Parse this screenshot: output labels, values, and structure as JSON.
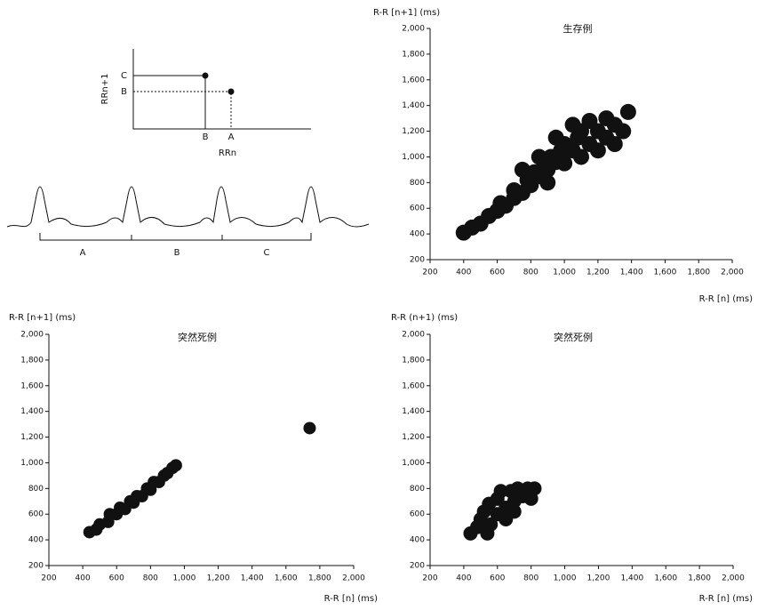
{
  "diagram": {
    "y_label": "RRn+1",
    "x_label": "RRn",
    "y_points": [
      "C",
      "B"
    ],
    "x_points": [
      "B",
      "A"
    ],
    "intervals": [
      "A",
      "B",
      "C"
    ]
  },
  "chart_data": [
    {
      "type": "scatter",
      "title": "生存例",
      "y_label": "R-R [n+1] (ms)",
      "x_label": "R-R [n] (ms)",
      "color": "#111111",
      "xlim": [
        200,
        2000
      ],
      "ylim": [
        200,
        2000
      ],
      "xticks": [
        200,
        400,
        600,
        800,
        {
          "value": 1000,
          "label": "1,000"
        },
        {
          "value": 1200,
          "label": "1,200"
        },
        {
          "value": 1400,
          "label": "1,400"
        },
        {
          "value": 1600,
          "label": "1,600"
        },
        {
          "value": 1800,
          "label": "1,800"
        },
        {
          "value": 2000,
          "label": "2,000"
        }
      ],
      "yticks": [
        200,
        400,
        600,
        800,
        {
          "value": 1000,
          "label": "1,000"
        },
        {
          "value": 1200,
          "label": "1,200"
        },
        {
          "value": 1400,
          "label": "1,400"
        },
        {
          "value": 1600,
          "label": "1,600"
        },
        {
          "value": 1800,
          "label": "1,800"
        },
        {
          "value": 2000,
          "label": "2,000"
        }
      ],
      "x": [
        400,
        450,
        500,
        550,
        600,
        620,
        650,
        700,
        700,
        750,
        780,
        800,
        820,
        850,
        880,
        900,
        920,
        950,
        980,
        1000,
        1000,
        1050,
        1080,
        1100,
        1100,
        1150,
        1200,
        1200,
        1250,
        1300,
        1300,
        1350,
        1380,
        850,
        950,
        1050,
        750,
        900,
        1150,
        1250
      ],
      "values": [
        410,
        450,
        480,
        540,
        580,
        640,
        620,
        680,
        740,
        720,
        820,
        780,
        880,
        850,
        940,
        900,
        1000,
        960,
        1050,
        950,
        1100,
        1050,
        1150,
        1000,
        1200,
        1100,
        1200,
        1050,
        1150,
        1250,
        1100,
        1200,
        1350,
        1000,
        1150,
        1250,
        900,
        800,
        1280,
        1300
      ]
    },
    {
      "type": "scatter",
      "title": "突然死例",
      "y_label": "R-R [n+1] (ms)",
      "x_label": "R-R [n] (ms)",
      "color": "#111111",
      "xlim": [
        200,
        2000
      ],
      "ylim": [
        200,
        2000
      ],
      "xticks": [
        200,
        400,
        600,
        800,
        {
          "value": 1000,
          "label": "1,000"
        },
        {
          "value": 1200,
          "label": "1,200"
        },
        {
          "value": 1400,
          "label": "1,400"
        },
        {
          "value": 1600,
          "label": "1,600"
        },
        {
          "value": 1800,
          "label": "1,800"
        },
        {
          "value": 2000,
          "label": "2,000"
        }
      ],
      "yticks": [
        200,
        400,
        600,
        800,
        {
          "value": 1000,
          "label": "1,000"
        },
        {
          "value": 1200,
          "label": "1,200"
        },
        {
          "value": 1400,
          "label": "1,400"
        },
        {
          "value": 1600,
          "label": "1,600"
        },
        {
          "value": 1800,
          "label": "1,800"
        },
        {
          "value": 2000,
          "label": "2,000"
        }
      ],
      "x": [
        440,
        480,
        500,
        550,
        560,
        600,
        620,
        650,
        680,
        700,
        720,
        750,
        780,
        800,
        820,
        850,
        880,
        900,
        930,
        950,
        1740
      ],
      "values": [
        460,
        480,
        520,
        540,
        600,
        600,
        650,
        640,
        700,
        690,
        740,
        740,
        800,
        790,
        850,
        850,
        900,
        920,
        960,
        980,
        1270
      ]
    },
    {
      "type": "scatter",
      "title": "突然死例",
      "y_label": "R-R (n+1) (ms)",
      "x_label": "R-R [n] (ms)",
      "color": "#111111",
      "xlim": [
        200,
        2000
      ],
      "ylim": [
        200,
        2000
      ],
      "xticks": [
        200,
        400,
        600,
        800,
        {
          "value": 1000,
          "label": "1,000"
        },
        {
          "value": 1200,
          "label": "1,200"
        },
        {
          "value": 1400,
          "label": "1,400"
        },
        {
          "value": 1600,
          "label": "1,600"
        },
        {
          "value": 1800,
          "label": "1,800"
        },
        {
          "value": 2000,
          "label": "2,000"
        }
      ],
      "yticks": [
        200,
        400,
        600,
        800,
        {
          "value": 1000,
          "label": "1,000"
        },
        {
          "value": 1200,
          "label": "1,200"
        },
        {
          "value": 1400,
          "label": "1,400"
        },
        {
          "value": 1600,
          "label": "1,600"
        },
        {
          "value": 1800,
          "label": "1,800"
        },
        {
          "value": 2000,
          "label": "2,000"
        }
      ],
      "x": [
        440,
        480,
        500,
        520,
        550,
        560,
        600,
        600,
        620,
        650,
        680,
        700,
        720,
        750,
        780,
        800,
        820,
        650,
        540,
        700
      ],
      "values": [
        450,
        500,
        560,
        620,
        680,
        520,
        600,
        720,
        780,
        650,
        780,
        700,
        800,
        740,
        800,
        720,
        800,
        560,
        450,
        620
      ]
    }
  ]
}
